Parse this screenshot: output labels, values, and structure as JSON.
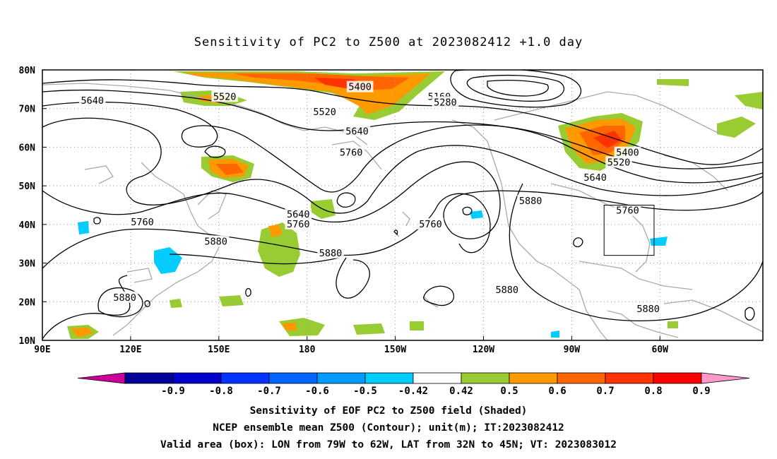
{
  "title": "Sensitivity of PC2 to Z500 at 2023082412 +1.0 day",
  "axes": {
    "lat_labels": [
      "80N",
      "70N",
      "60N",
      "50N",
      "40N",
      "30N",
      "20N",
      "10N"
    ],
    "lon_labels": [
      "90E",
      "120E",
      "150E",
      "180",
      "150W",
      "120W",
      "90W",
      "60W"
    ]
  },
  "contours": {
    "levels": [
      "5160",
      "5280",
      "5400",
      "5520",
      "5640",
      "5760",
      "5880"
    ],
    "labels": [
      {
        "text": "5640",
        "lat": 72,
        "lon": 107
      },
      {
        "text": "5520",
        "lat": 73,
        "lon": 152
      },
      {
        "text": "5400",
        "lat": 75.5,
        "lon": -162
      },
      {
        "text": "5160",
        "lat": 73,
        "lon": -135
      },
      {
        "text": "5280",
        "lat": 71.5,
        "lon": -133
      },
      {
        "text": "5520",
        "lat": 69,
        "lon": -174
      },
      {
        "text": "5640",
        "lat": 64,
        "lon": -163
      },
      {
        "text": "5760",
        "lat": 58.5,
        "lon": -165
      },
      {
        "text": "5400",
        "lat": 58.5,
        "lon": -71
      },
      {
        "text": "5520",
        "lat": 56,
        "lon": -74
      },
      {
        "text": "5640",
        "lat": 52,
        "lon": -82
      },
      {
        "text": "5760",
        "lat": 43.5,
        "lon": -71
      },
      {
        "text": "5880",
        "lat": 46,
        "lon": -104
      },
      {
        "text": "5640",
        "lat": 42.5,
        "lon": 177
      },
      {
        "text": "5760",
        "lat": 40,
        "lon": 177
      },
      {
        "text": "5760",
        "lat": 40,
        "lon": -138
      },
      {
        "text": "5760",
        "lat": 40.5,
        "lon": 124
      },
      {
        "text": "5880",
        "lat": 35.5,
        "lon": 149
      },
      {
        "text": "5880",
        "lat": 32.5,
        "lon": -172
      },
      {
        "text": "5880",
        "lat": 23,
        "lon": -112
      },
      {
        "text": "5880",
        "lat": 18,
        "lon": -64
      },
      {
        "text": "5880",
        "lat": 21,
        "lon": 118
      }
    ]
  },
  "shading": {
    "positive_color": "#99cc33",
    "mid_color": "#ff9900",
    "high_color": "#ff3300"
  },
  "colorbar": {
    "labels": [
      "-0.9",
      "-0.8",
      "-0.7",
      "-0.6",
      "-0.5",
      "-0.42",
      "0.42",
      "0.5",
      "0.6",
      "0.7",
      "0.8",
      "0.9"
    ],
    "colors": [
      "#cc0099",
      "#000099",
      "#0000cc",
      "#0033ff",
      "#0066ff",
      "#0099ff",
      "#00ccff",
      "#ffffff",
      "#99cc33",
      "#ff9900",
      "#ff6600",
      "#ff3300",
      "#ff0000",
      "#ff99cc"
    ]
  },
  "box": {
    "lon_min": -79,
    "lon_max": -62,
    "lat_min": 32,
    "lat_max": 45
  },
  "footer": {
    "line1": "Sensitivity of EOF PC2 to Z500 field (Shaded)",
    "line2": "NCEP ensemble mean Z500 (Contour); unit(m); IT:2023082412",
    "line3": "Valid area (box): LON from 79W to 62W, LAT from 32N to 45N; VT: 2023083012"
  }
}
